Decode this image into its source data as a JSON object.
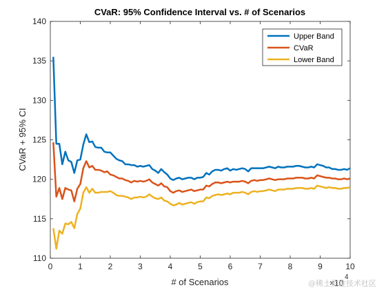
{
  "colors": {
    "upper": "#0072BD",
    "cvar": "#D95319",
    "lower": "#EDB120",
    "axis": "#262626",
    "background": "#ffffff"
  },
  "watermark": "@稀土掘金技术社区",
  "chart_data": {
    "type": "line",
    "title": "CVaR: 95% Confidence Interval vs. # of Scenarios",
    "xlabel": "# of Scenarios",
    "ylabel": "CVaR + 95% CI",
    "xlim": [
      0,
      10
    ],
    "ylim": [
      110,
      140
    ],
    "x_exponent_label": "×10",
    "x_exponent": "4",
    "x_ticks": [
      0,
      1,
      2,
      3,
      4,
      5,
      6,
      7,
      8,
      9,
      10
    ],
    "y_ticks": [
      110,
      115,
      120,
      125,
      130,
      135,
      140
    ],
    "grid": false,
    "legend_position": "top-right",
    "x": [
      0.1,
      0.2,
      0.3,
      0.4,
      0.5,
      0.6,
      0.7,
      0.8,
      0.9,
      1.0,
      1.1,
      1.2,
      1.3,
      1.4,
      1.5,
      1.6,
      1.7,
      1.8,
      1.9,
      2.0,
      2.1,
      2.2,
      2.3,
      2.4,
      2.5,
      2.6,
      2.7,
      2.8,
      2.9,
      3.0,
      3.1,
      3.2,
      3.3,
      3.4,
      3.5,
      3.6,
      3.7,
      3.8,
      3.9,
      4.0,
      4.1,
      4.2,
      4.3,
      4.4,
      4.5,
      4.6,
      4.7,
      4.8,
      4.9,
      5.0,
      5.1,
      5.2,
      5.3,
      5.4,
      5.5,
      5.6,
      5.7,
      5.8,
      5.9,
      6.0,
      6.1,
      6.2,
      6.3,
      6.4,
      6.5,
      6.6,
      6.7,
      6.8,
      6.9,
      7.0,
      7.1,
      7.2,
      7.3,
      7.4,
      7.5,
      7.6,
      7.7,
      7.8,
      7.9,
      8.0,
      8.1,
      8.2,
      8.3,
      8.4,
      8.5,
      8.6,
      8.7,
      8.8,
      8.9,
      9.0,
      9.1,
      9.2,
      9.3,
      9.4,
      9.5,
      9.6,
      9.7,
      9.8,
      9.9,
      10.0
    ],
    "series": [
      {
        "name": "Upper Band",
        "values": [
          135.5,
          124.5,
          124.5,
          121.9,
          123.5,
          122.4,
          122.2,
          120.8,
          122.4,
          122.5,
          124.4,
          125.7,
          124.7,
          124.8,
          124.1,
          124.0,
          124.0,
          123.5,
          123.4,
          123.4,
          123.0,
          122.6,
          122.4,
          122.3,
          121.9,
          121.9,
          121.8,
          121.8,
          121.6,
          121.7,
          121.6,
          121.7,
          121.8,
          121.3,
          121.1,
          120.8,
          121.3,
          120.9,
          120.6,
          120.1,
          119.9,
          120.1,
          120.2,
          120.0,
          120.1,
          120.2,
          120.2,
          120.0,
          120.2,
          120.2,
          120.3,
          120.8,
          120.6,
          121.0,
          121.2,
          121.2,
          121.1,
          121.3,
          121.4,
          121.1,
          121.3,
          121.2,
          121.3,
          121.4,
          121.3,
          121.0,
          121.4,
          121.4,
          121.4,
          121.4,
          121.4,
          121.5,
          121.6,
          121.5,
          121.4,
          121.6,
          121.5,
          121.5,
          121.6,
          121.6,
          121.6,
          121.7,
          121.7,
          121.6,
          121.5,
          121.5,
          121.6,
          121.5,
          121.9,
          121.8,
          121.7,
          121.5,
          121.5,
          121.3,
          121.3,
          121.2,
          121.2,
          121.3,
          121.2,
          121.4
        ]
      },
      {
        "name": "CVaR",
        "values": [
          124.7,
          117.8,
          118.9,
          117.5,
          118.9,
          118.7,
          118.6,
          117.2,
          118.8,
          119.4,
          121.4,
          122.3,
          121.5,
          121.7,
          121.2,
          121.2,
          121.1,
          120.9,
          121.0,
          120.6,
          120.5,
          120.3,
          120.1,
          120.1,
          119.9,
          119.8,
          119.6,
          119.8,
          119.7,
          119.8,
          119.7,
          119.8,
          120.0,
          119.6,
          119.4,
          119.2,
          119.5,
          119.1,
          119.0,
          118.5,
          118.3,
          118.5,
          118.6,
          118.4,
          118.5,
          118.6,
          118.7,
          118.5,
          118.6,
          118.7,
          118.7,
          119.2,
          119.1,
          119.4,
          119.6,
          119.6,
          119.5,
          119.6,
          119.7,
          119.6,
          119.7,
          119.7,
          119.7,
          119.8,
          119.7,
          119.5,
          119.8,
          119.9,
          119.8,
          119.9,
          119.9,
          120.0,
          120.1,
          120.0,
          119.9,
          120.0,
          120.0,
          120.0,
          120.1,
          120.1,
          120.1,
          120.2,
          120.2,
          120.2,
          120.1,
          120.1,
          120.2,
          120.1,
          120.5,
          120.4,
          120.3,
          120.2,
          120.2,
          120.1,
          120.1,
          120.0,
          120.0,
          120.1,
          120.0,
          120.1
        ]
      },
      {
        "name": "Lower Band",
        "values": [
          113.8,
          111.2,
          113.5,
          113.1,
          114.4,
          114.3,
          114.6,
          113.8,
          115.6,
          116.3,
          118.3,
          119.0,
          118.3,
          118.8,
          118.3,
          118.3,
          118.4,
          118.4,
          118.4,
          118.5,
          118.3,
          118.0,
          117.9,
          117.9,
          117.8,
          117.7,
          117.5,
          117.7,
          117.7,
          117.8,
          117.7,
          117.8,
          118.1,
          117.8,
          117.6,
          117.5,
          117.7,
          117.3,
          117.2,
          116.9,
          116.7,
          116.8,
          117.0,
          116.8,
          116.9,
          117.0,
          117.1,
          116.9,
          117.1,
          117.2,
          117.2,
          117.7,
          117.6,
          117.9,
          118.0,
          118.1,
          118.0,
          118.1,
          118.2,
          118.1,
          118.3,
          118.3,
          118.3,
          118.4,
          118.3,
          118.1,
          118.4,
          118.5,
          118.4,
          118.5,
          118.5,
          118.6,
          118.7,
          118.6,
          118.5,
          118.7,
          118.7,
          118.7,
          118.8,
          118.8,
          118.8,
          118.9,
          118.9,
          118.9,
          118.8,
          118.8,
          118.9,
          118.8,
          119.2,
          119.1,
          119.0,
          118.9,
          119.0,
          118.9,
          118.9,
          118.8,
          118.8,
          118.9,
          118.9,
          119.0
        ]
      }
    ]
  }
}
